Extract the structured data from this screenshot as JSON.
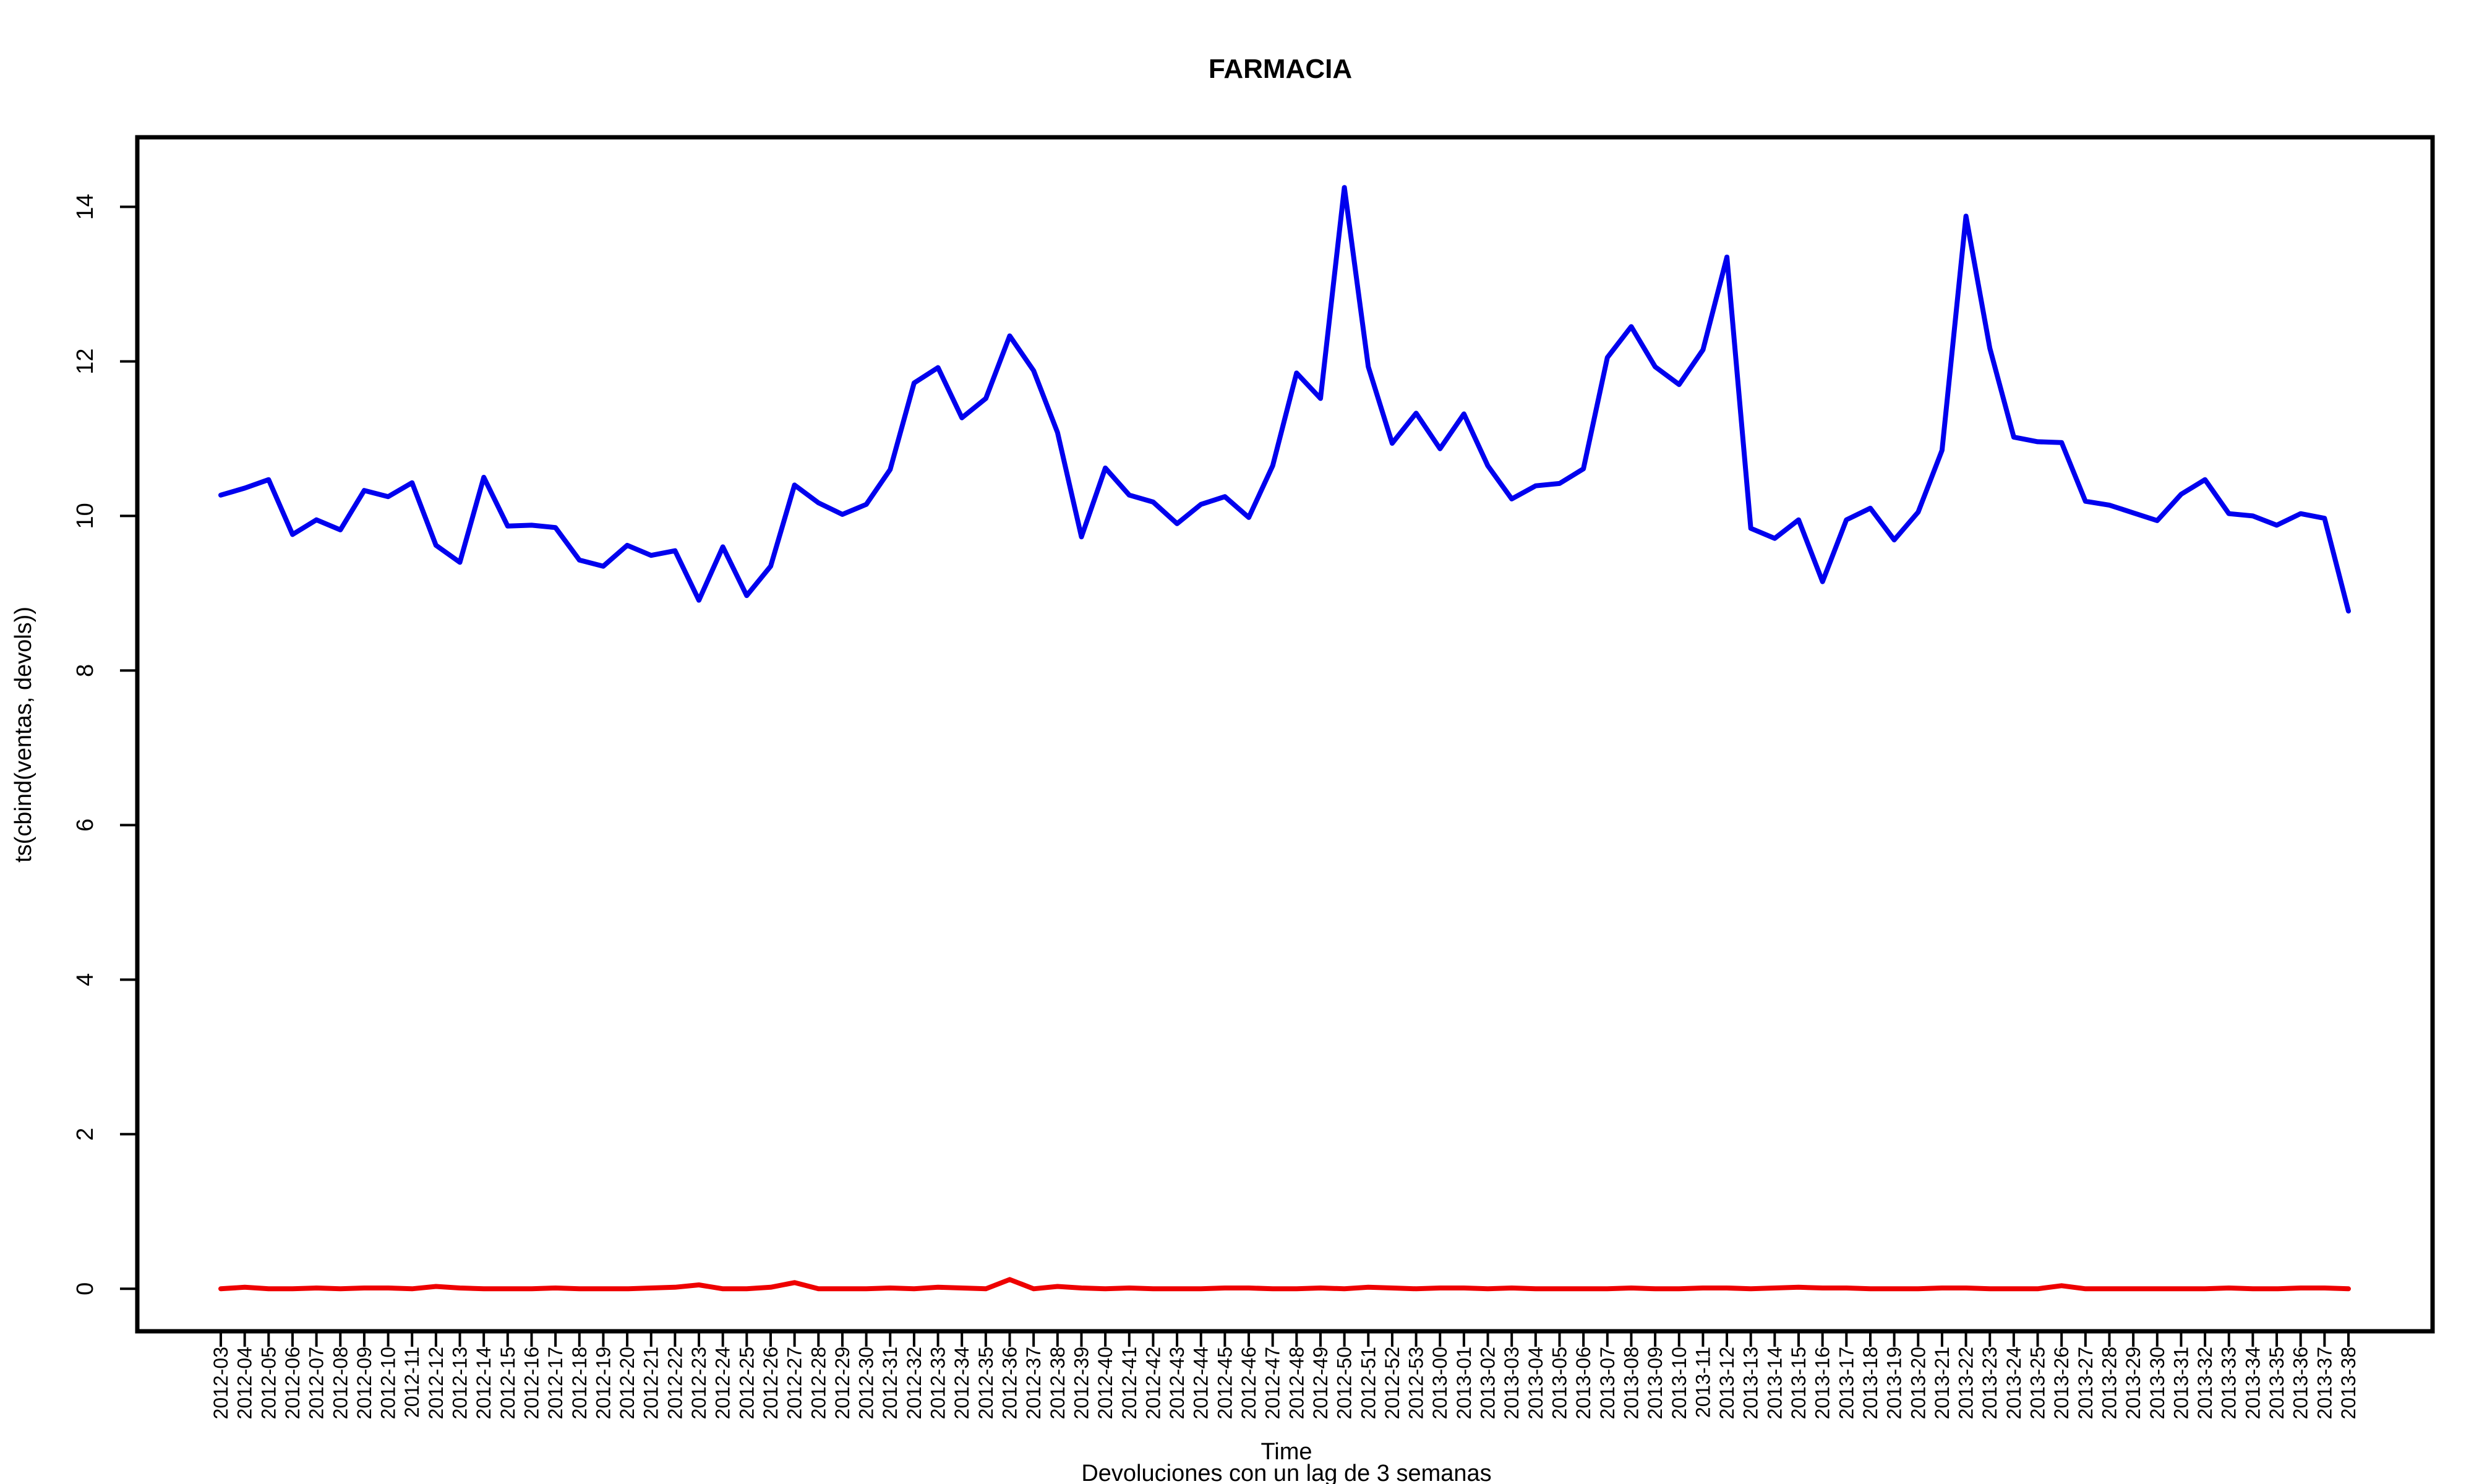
{
  "chart_data": {
    "type": "line",
    "title": "FARMACIA",
    "xlabel": "Time",
    "ylabel": "ts(cbind(ventas, devols))",
    "subtitle": "Devoluciones con un lag de 3 semanas",
    "ylim": [
      -0.55,
      14.9
    ],
    "yticks": [
      0,
      2,
      4,
      6,
      8,
      10,
      12,
      14
    ],
    "grid": false,
    "legend": "none",
    "x_tick_labels": [
      "2012-03",
      "2012-04",
      "2012-05",
      "2012-06",
      "2012-07",
      "2012-08",
      "2012-09",
      "2012-10",
      "2012-11",
      "2012-12",
      "2012-13",
      "2012-14",
      "2012-15",
      "2012-16",
      "2012-17",
      "2012-18",
      "2012-19",
      "2012-20",
      "2012-21",
      "2012-22",
      "2012-23",
      "2012-24",
      "2012-25",
      "2012-26",
      "2012-27",
      "2012-28",
      "2012-29",
      "2012-30",
      "2012-31",
      "2012-32",
      "2012-33",
      "2012-34",
      "2012-35",
      "2012-36",
      "2012-37",
      "2012-38",
      "2012-39",
      "2012-40",
      "2012-41",
      "2012-42",
      "2012-43",
      "2012-44",
      "2012-45",
      "2012-46",
      "2012-47",
      "2012-48",
      "2012-49",
      "2012-50",
      "2012-51",
      "2012-52",
      "2012-53",
      "2013-00",
      "2013-01",
      "2013-02",
      "2013-03",
      "2013-04",
      "2013-05",
      "2013-06",
      "2013-07",
      "2013-08",
      "2013-09",
      "2013-10",
      "2013-11",
      "2013-12",
      "2013-13",
      "2013-14",
      "2013-15",
      "2013-16",
      "2013-17",
      "2013-18",
      "2013-19",
      "2013-20",
      "2013-21",
      "2013-22",
      "2013-23",
      "2013-24",
      "2013-25",
      "2013-26",
      "2013-27",
      "2013-28",
      "2013-29",
      "2013-30",
      "2013-31",
      "2013-32",
      "2013-33",
      "2013-34",
      "2013-35",
      "2013-36",
      "2013-37",
      "2013-38"
    ],
    "series": [
      {
        "color": "#0000ee",
        "values": [
          10.27,
          10.36,
          10.47,
          9.76,
          9.95,
          9.82,
          10.33,
          10.25,
          10.43,
          9.62,
          9.4,
          10.5,
          9.87,
          9.88,
          9.85,
          9.43,
          9.35,
          9.62,
          9.49,
          9.55,
          8.91,
          9.6,
          8.97,
          9.35,
          10.4,
          10.17,
          10.02,
          10.15,
          10.6,
          11.72,
          11.92,
          11.27,
          11.52,
          12.33,
          11.88,
          11.08,
          9.73,
          10.62,
          10.27,
          10.18,
          9.9,
          10.15,
          10.25,
          9.98,
          10.65,
          11.85,
          11.52,
          14.25,
          11.93,
          10.94,
          11.33,
          10.87,
          11.32,
          10.65,
          10.22,
          10.39,
          10.42,
          10.61,
          12.05,
          12.45,
          11.93,
          11.7,
          12.15,
          13.35,
          9.84,
          9.71,
          9.95,
          9.15,
          9.95,
          10.1,
          9.69,
          10.05,
          10.85,
          13.88,
          12.17,
          11.02,
          10.96,
          10.95,
          10.19,
          10.14,
          10.04,
          9.94,
          10.28,
          10.47,
          10.03,
          10.0,
          9.88,
          10.03,
          9.97,
          8.77
        ]
      },
      {
        "color": "#ee0000",
        "values": [
          0.0,
          0.02,
          0.0,
          0.0,
          0.01,
          0.0,
          0.01,
          0.01,
          0.0,
          0.03,
          0.01,
          0.0,
          0.0,
          0.0,
          0.01,
          0.0,
          0.0,
          0.0,
          0.01,
          0.02,
          0.05,
          0.0,
          0.0,
          0.02,
          0.08,
          0.0,
          0.0,
          0.0,
          0.01,
          0.0,
          0.02,
          0.01,
          0.0,
          0.12,
          0.0,
          0.03,
          0.01,
          0.0,
          0.01,
          0.0,
          0.0,
          0.0,
          0.01,
          0.01,
          0.0,
          0.0,
          0.01,
          0.0,
          0.02,
          0.01,
          0.0,
          0.01,
          0.01,
          0.0,
          0.01,
          0.0,
          0.0,
          0.0,
          0.0,
          0.01,
          0.0,
          0.0,
          0.01,
          0.01,
          0.0,
          0.01,
          0.02,
          0.01,
          0.01,
          0.0,
          0.0,
          0.0,
          0.01,
          0.01,
          0.0,
          0.0,
          0.0,
          0.04,
          0.0,
          0.0,
          0.0,
          0.0,
          0.0,
          0.0,
          0.01,
          0.0,
          0.0,
          0.01,
          0.01,
          0.0
        ]
      }
    ]
  }
}
